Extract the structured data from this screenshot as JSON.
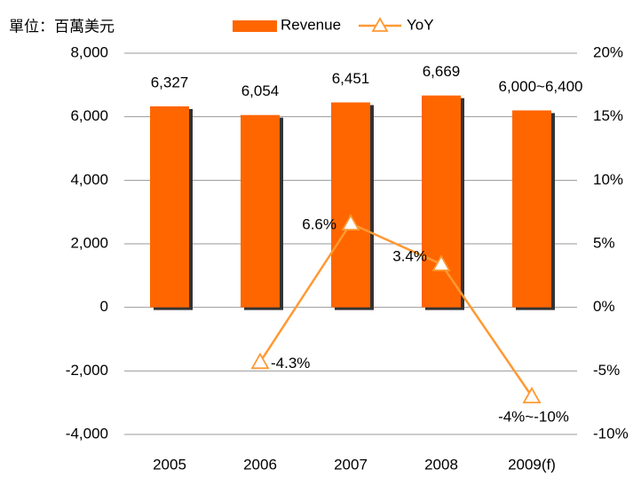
{
  "chart_data": {
    "type": "bar",
    "unit_label": "單位：百萬美元",
    "categories": [
      "2005",
      "2006",
      "2007",
      "2008",
      "2009(f)"
    ],
    "series": [
      {
        "name": "Revenue",
        "type": "bar",
        "color": "#ff6600",
        "values": [
          6327,
          6054,
          6451,
          6669,
          6200
        ],
        "value_labels": [
          "6,327",
          "6,054",
          "6,451",
          "6,669",
          "6,000~6,400"
        ]
      },
      {
        "name": "YoY",
        "type": "line",
        "axis": "y2",
        "color": "#ff9933",
        "values": [
          null,
          -4.3,
          6.6,
          3.4,
          -7
        ],
        "value_labels": [
          null,
          "-4.3%",
          "6.6%",
          "3.4%",
          "-4%~-10%"
        ]
      }
    ],
    "ylim": [
      -4000,
      8000
    ],
    "yticks": [
      {
        "value": -4000,
        "label": "-4,000"
      },
      {
        "value": -2000,
        "label": "-2,000"
      },
      0,
      {
        "value": 2000,
        "label": "2,000"
      },
      {
        "value": 4000,
        "label": "4,000"
      },
      {
        "value": 6000,
        "label": "6,000"
      },
      {
        "value": 8000,
        "label": "8,000"
      }
    ],
    "y2lim": [
      -10,
      20
    ],
    "y2ticks": [
      {
        "value": -10,
        "label": "-10%"
      },
      {
        "value": -5,
        "label": "-5%"
      },
      {
        "value": 0,
        "label": "0%"
      },
      {
        "value": 5,
        "label": "5%"
      },
      {
        "value": 10,
        "label": "10%"
      },
      {
        "value": 15,
        "label": "15%"
      },
      {
        "value": 20,
        "label": "20%"
      }
    ],
    "grid": true,
    "legend": "top"
  }
}
